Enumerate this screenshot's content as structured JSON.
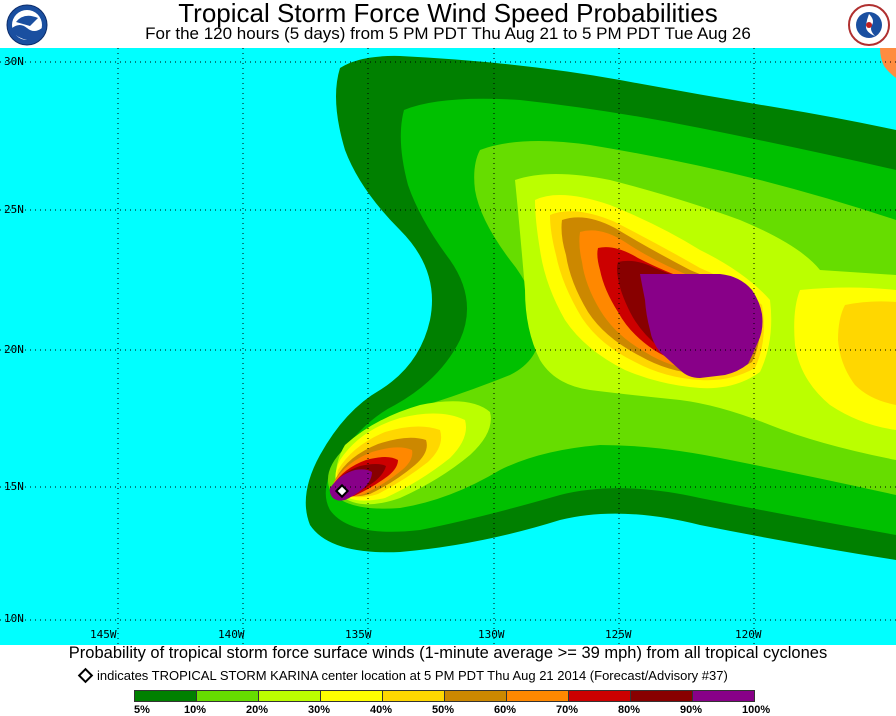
{
  "header": {
    "title": "Tropical Storm Force Wind Speed Probabilities",
    "subtitle": "For the 120 hours (5 days) from 5 PM PDT Thu Aug 21 to 5 PM PDT Tue Aug 26",
    "left_logo_text": "NOAA",
    "right_logo_text": "NATIONAL WEATHER SERVICE"
  },
  "map": {
    "ocean_color": "#00ffff",
    "land_color": "#ff8c40",
    "latitude_labels": [
      "30N",
      "25N",
      "20N",
      "15N",
      "10N"
    ],
    "longitude_labels": [
      "145W",
      "140W",
      "135W",
      "130W",
      "125W",
      "120W"
    ],
    "storm_center": {
      "name": "TROPICAL STORM KARINA",
      "lat": 14.8,
      "lon": -136.2,
      "marker": "diamond"
    }
  },
  "caption": "Probability of tropical storm force surface winds (1-minute average >= 39 mph) from all tropical cyclones",
  "indicator_text": "indicates TROPICAL STORM KARINA center location at 5 PM PDT Thu Aug 21 2014 (Forecast/Advisory #37)",
  "legend": {
    "labels": [
      "5%",
      "10%",
      "20%",
      "30%",
      "40%",
      "50%",
      "60%",
      "70%",
      "80%",
      "90%",
      "100%"
    ],
    "colors": [
      "#008000",
      "#00c000",
      "#66dd00",
      "#bbff00",
      "#ffff00",
      "#ffd700",
      "#cc8800",
      "#ff8800",
      "#cc0000",
      "#880000",
      "#880088"
    ]
  }
}
